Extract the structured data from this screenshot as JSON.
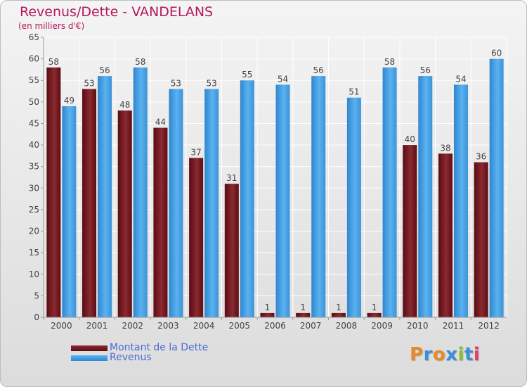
{
  "header": {
    "title": "Revenus/Dette - VANDELANS",
    "subtitle": "(en milliers d'€)"
  },
  "legend": {
    "items": [
      {
        "label": "Montant de la Dette",
        "color": "#6b0f17"
      },
      {
        "label": "Revenus",
        "color": "#4aa3e8"
      }
    ]
  },
  "branding": {
    "logo_text": "Proxiti",
    "logo_colors": [
      "#e8892a",
      "#3a8fd6",
      "#e8892a",
      "#3a8fd6",
      "#8bbf2a",
      "#3a8fd6",
      "#e83a6b"
    ]
  },
  "chart_data": {
    "type": "bar",
    "title": "Revenus/Dette - VANDELANS",
    "subtitle": "(en milliers d'€)",
    "categories": [
      "2000",
      "2001",
      "2002",
      "2003",
      "2004",
      "2005",
      "2006",
      "2007",
      "2008",
      "2009",
      "2010",
      "2011",
      "2012"
    ],
    "series": [
      {
        "name": "Montant de la Dette",
        "color": "#6b0f17",
        "values": [
          58,
          53,
          48,
          44,
          37,
          31,
          1,
          1,
          1,
          1,
          40,
          38,
          36
        ]
      },
      {
        "name": "Revenus",
        "color": "#4aa3e8",
        "values": [
          49,
          56,
          58,
          53,
          53,
          55,
          54,
          56,
          51,
          58,
          56,
          54,
          60
        ]
      }
    ],
    "ylim": [
      0,
      65
    ],
    "yticks": [
      0,
      5,
      10,
      15,
      20,
      25,
      30,
      35,
      40,
      45,
      50,
      55,
      60,
      65
    ],
    "grid": true,
    "legend_position": "bottom-left",
    "data_labels": true
  }
}
